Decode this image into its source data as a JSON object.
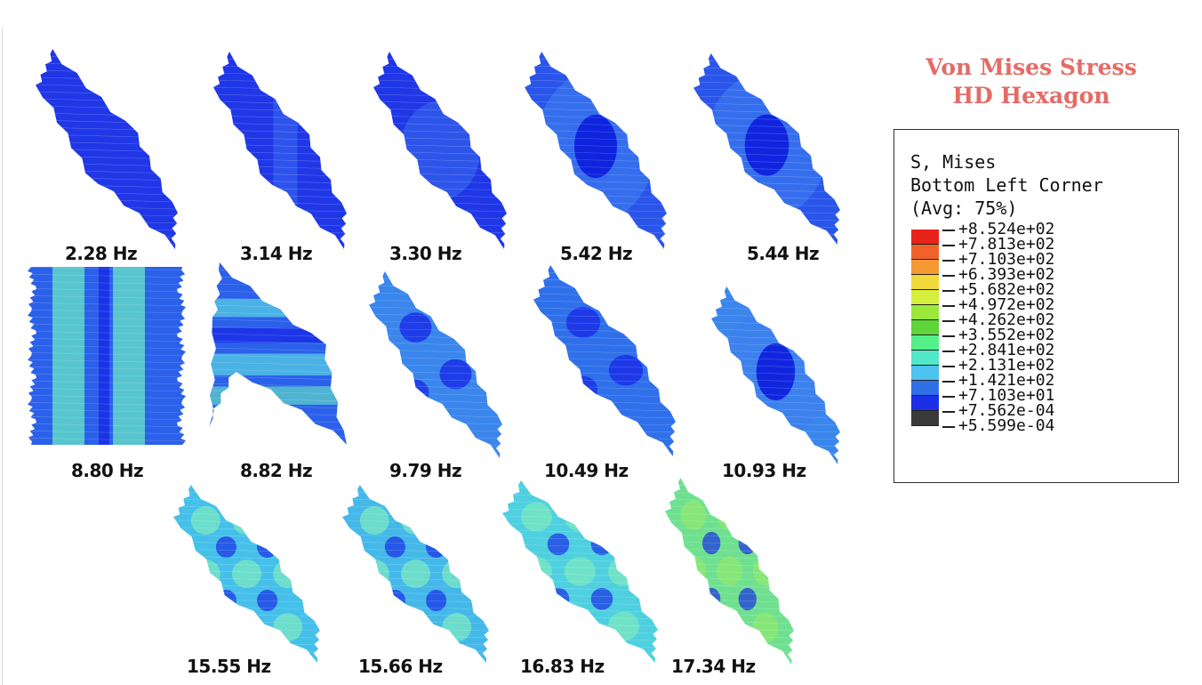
{
  "title": {
    "line1": "Von Mises Stress",
    "line2": "HD Hexagon"
  },
  "legend": {
    "line1": "S, Mises",
    "line2": "Bottom Left Corner",
    "line3": "(Avg: 75%)",
    "values": [
      "+8.524e+02",
      "+7.813e+02",
      "+7.103e+02",
      "+6.393e+02",
      "+5.682e+02",
      "+4.972e+02",
      "+4.262e+02",
      "+3.552e+02",
      "+2.841e+02",
      "+2.131e+02",
      "+1.421e+02",
      "+7.103e+01",
      "+7.562e-04",
      "+5.599e-04"
    ],
    "colors": [
      "#e8231c",
      "#f0622a",
      "#f59a32",
      "#f2d93a",
      "#d6ef3c",
      "#9be83a",
      "#5ed63a",
      "#55f08a",
      "#53e8c8",
      "#4fc3ef",
      "#2f6fe8",
      "#1a2fe6",
      "#3a3a3a"
    ]
  },
  "modes": [
    {
      "freq": "2.28 Hz",
      "pattern": "uniform",
      "base": "#1f37e6"
    },
    {
      "freq": "3.14 Hz",
      "pattern": "band-v",
      "base": "#1f37e6"
    },
    {
      "freq": "3.30 Hz",
      "pattern": "soft",
      "base": "#1f37e6"
    },
    {
      "freq": "5.42 Hz",
      "pattern": "center",
      "base": "#2a55ea"
    },
    {
      "freq": "5.44 Hz",
      "pattern": "center",
      "base": "#2a55ea"
    },
    {
      "freq": "8.80 Hz",
      "pattern": "stripes-v",
      "base": "#2b60ea"
    },
    {
      "freq": "8.82 Hz",
      "pattern": "stripes-h",
      "base": "#2b60ea"
    },
    {
      "freq": "9.79 Hz",
      "pattern": "grid2",
      "base": "#3a86ec"
    },
    {
      "freq": "10.49 Hz",
      "pattern": "grid2",
      "base": "#2f70ea"
    },
    {
      "freq": "10.93 Hz",
      "pattern": "center",
      "base": "#3a86ec"
    },
    {
      "freq": "15.55 Hz",
      "pattern": "grid3",
      "base": "#45c0ea"
    },
    {
      "freq": "15.66 Hz",
      "pattern": "grid3",
      "base": "#45b8ea"
    },
    {
      "freq": "16.83 Hz",
      "pattern": "grid3",
      "base": "#4fd0e0"
    },
    {
      "freq": "17.34 Hz",
      "pattern": "grid3g",
      "base": "#6fe090"
    }
  ]
}
